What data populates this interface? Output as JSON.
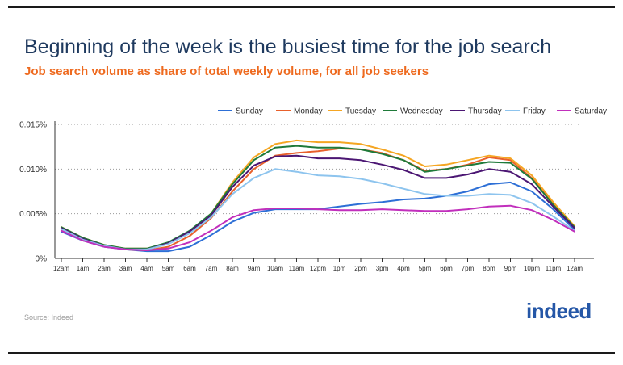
{
  "title": "Beginning of the week is the busiest time for the job search",
  "subtitle": "Job search volume as share of total weekly volume, for all job seekers",
  "source": "Source: Indeed",
  "logo_text": "indeed",
  "colors": {
    "title": "#1f3a5f",
    "subtitle": "#ee6a1f",
    "logo": "#2557a7"
  },
  "chart_data": {
    "type": "line",
    "xlabel": "",
    "ylabel": "",
    "ylim": [
      0,
      0.015
    ],
    "y_ticks": [
      0,
      0.005,
      0.01,
      0.015
    ],
    "y_tick_labels": [
      "0%",
      "0.005%",
      "0.010%",
      "0.015%"
    ],
    "grid": "horizontal dotted",
    "legend_position": "top",
    "x": [
      "12am",
      "1am",
      "2am",
      "3am",
      "4am",
      "5am",
      "6am",
      "7am",
      "8am",
      "9am",
      "10am",
      "11am",
      "12pm",
      "1pm",
      "2pm",
      "3pm",
      "4pm",
      "5pm",
      "6pm",
      "7pm",
      "8pm",
      "9pm",
      "10pm",
      "11pm",
      "12am"
    ],
    "series": [
      {
        "name": "Sunday",
        "color": "#2d6fd6",
        "values": [
          0.003,
          0.002,
          0.0013,
          0.001,
          0.0008,
          0.0008,
          0.0013,
          0.0026,
          0.0041,
          0.0051,
          0.0055,
          0.0055,
          0.0055,
          0.0058,
          0.0061,
          0.0063,
          0.0066,
          0.0067,
          0.007,
          0.0075,
          0.0083,
          0.0085,
          0.0075,
          0.0055,
          0.0032
        ]
      },
      {
        "name": "Monday",
        "color": "#e8612c",
        "values": [
          0.0035,
          0.0022,
          0.0014,
          0.001,
          0.0009,
          0.0013,
          0.0025,
          0.0045,
          0.0075,
          0.01,
          0.0115,
          0.0118,
          0.012,
          0.0123,
          0.0122,
          0.0118,
          0.011,
          0.0098,
          0.01,
          0.0105,
          0.0113,
          0.011,
          0.009,
          0.0062,
          0.0035
        ]
      },
      {
        "name": "Tuesday",
        "color": "#f5a623",
        "values": [
          0.0035,
          0.0023,
          0.0015,
          0.0011,
          0.0011,
          0.0017,
          0.003,
          0.005,
          0.0085,
          0.0113,
          0.0128,
          0.0132,
          0.013,
          0.013,
          0.0128,
          0.0122,
          0.0115,
          0.0103,
          0.0105,
          0.011,
          0.0115,
          0.0112,
          0.0093,
          0.0063,
          0.0036
        ]
      },
      {
        "name": "Wednesday",
        "color": "#1f7a3a",
        "values": [
          0.0035,
          0.0023,
          0.0015,
          0.0011,
          0.0011,
          0.0018,
          0.0031,
          0.005,
          0.0083,
          0.011,
          0.0124,
          0.0126,
          0.0124,
          0.0124,
          0.0122,
          0.0117,
          0.011,
          0.0097,
          0.01,
          0.0104,
          0.0108,
          0.0107,
          0.0089,
          0.006,
          0.0035
        ]
      },
      {
        "name": "Thursday",
        "color": "#4b1673",
        "values": [
          0.0034,
          0.0022,
          0.0014,
          0.001,
          0.001,
          0.0017,
          0.003,
          0.0048,
          0.008,
          0.0104,
          0.0114,
          0.0115,
          0.0112,
          0.0112,
          0.011,
          0.0105,
          0.0099,
          0.009,
          0.009,
          0.0094,
          0.01,
          0.0097,
          0.0083,
          0.0058,
          0.0034
        ]
      },
      {
        "name": "Friday",
        "color": "#8dc4ee",
        "values": [
          0.0033,
          0.0021,
          0.0014,
          0.001,
          0.001,
          0.0016,
          0.0028,
          0.0046,
          0.0072,
          0.009,
          0.01,
          0.0097,
          0.0093,
          0.0092,
          0.0089,
          0.0084,
          0.0078,
          0.0072,
          0.007,
          0.007,
          0.0072,
          0.0071,
          0.0062,
          0.0047,
          0.0031
        ]
      },
      {
        "name": "Saturday",
        "color": "#c12fbc",
        "values": [
          0.0031,
          0.002,
          0.0013,
          0.001,
          0.0009,
          0.0011,
          0.0018,
          0.0031,
          0.0046,
          0.0054,
          0.0056,
          0.0056,
          0.0055,
          0.0054,
          0.0054,
          0.0055,
          0.0054,
          0.0053,
          0.0053,
          0.0055,
          0.0058,
          0.0059,
          0.0054,
          0.0043,
          0.003
        ]
      }
    ]
  }
}
